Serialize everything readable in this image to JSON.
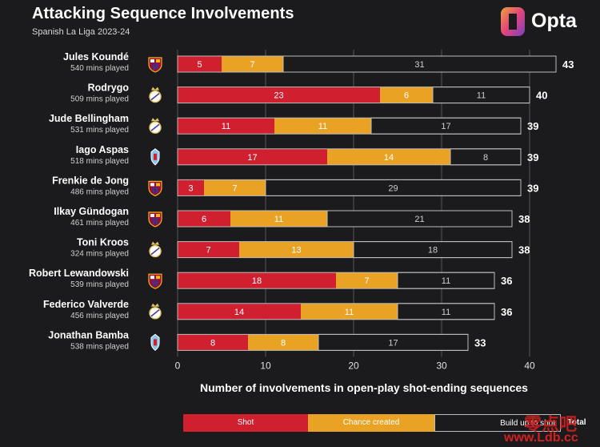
{
  "header": {
    "title": "Attacking Sequence Involvements",
    "subtitle": "Spanish La Liga 2023-24",
    "brand": "Opta"
  },
  "colors": {
    "background": "#1b1b1d",
    "shot": "#d01f2e",
    "chance": "#e9a224",
    "buildup": "#1b1b1d",
    "outline": "#bdbdbd",
    "grid": "#555555"
  },
  "legend": {
    "shot": "Shot",
    "chance": "Chance created",
    "buildup": "Build up to shot",
    "total": "Total"
  },
  "watermark": {
    "chinese": "零点吧",
    "url": "www.Ldb.cc"
  },
  "chart_data": {
    "type": "bar",
    "orientation": "horizontal",
    "stacked": true,
    "title": "Attacking Sequence Involvements",
    "subtitle": "Spanish La Liga 2023-24",
    "xlabel": "Number of involvements in open-play shot-ending sequences",
    "xlim": [
      0,
      40
    ],
    "xticks": [
      0,
      10,
      20,
      30,
      40
    ],
    "grid": true,
    "legend_position": "bottom",
    "categories": [
      "Jules Koundé",
      "Rodrygo",
      "Jude Bellingham",
      "Iago Aspas",
      "Frenkie de Jong",
      "Ilkay Gündogan",
      "Toni Kroos",
      "Robert Lewandowski",
      "Federico Valverde",
      "Jonathan Bamba"
    ],
    "minutes": [
      "540 mins played",
      "509 mins played",
      "531 mins played",
      "518 mins played",
      "486 mins played",
      "461 mins played",
      "324 mins played",
      "539 mins played",
      "456 mins played",
      "538 mins played"
    ],
    "clubs": [
      "barcelona-crest-icon",
      "real-madrid-crest-icon",
      "real-madrid-crest-icon",
      "celta-crest-icon",
      "barcelona-crest-icon",
      "barcelona-crest-icon",
      "real-madrid-crest-icon",
      "barcelona-crest-icon",
      "real-madrid-crest-icon",
      "celta-crest-icon"
    ],
    "series": [
      {
        "name": "Shot",
        "values": [
          5,
          23,
          11,
          17,
          3,
          6,
          7,
          18,
          14,
          8
        ]
      },
      {
        "name": "Chance created",
        "values": [
          7,
          6,
          11,
          14,
          7,
          11,
          13,
          7,
          11,
          8
        ]
      },
      {
        "name": "Build up to shot",
        "values": [
          31,
          11,
          17,
          8,
          29,
          21,
          18,
          11,
          11,
          17
        ]
      }
    ],
    "totals": [
      43,
      40,
      39,
      39,
      39,
      38,
      38,
      36,
      36,
      33
    ]
  }
}
